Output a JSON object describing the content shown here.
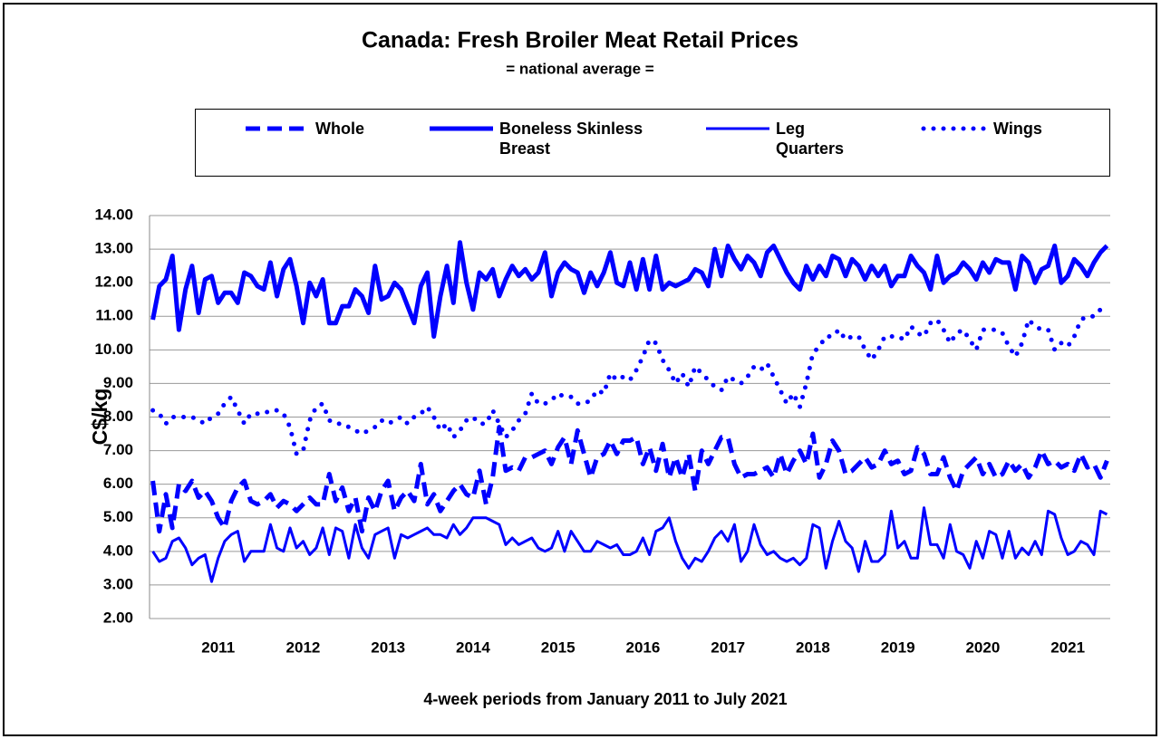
{
  "chart_data": {
    "type": "line",
    "title": "Canada: Fresh Broiler Meat Retail Prices",
    "subtitle": "= national average =",
    "y_label": "C$/kg",
    "x_label": "4-week periods from January 2011 to July 2021",
    "ylim": [
      2,
      14
    ],
    "yticks": [
      {
        "value": 2,
        "label": "2.00"
      },
      {
        "value": 3,
        "label": "3.00"
      },
      {
        "value": 4,
        "label": "4.00"
      },
      {
        "value": 5,
        "label": "5.00"
      },
      {
        "value": 6,
        "label": "6.00"
      },
      {
        "value": 7,
        "label": "7.00"
      },
      {
        "value": 8,
        "label": "8.00"
      },
      {
        "value": 9,
        "label": "9.00"
      },
      {
        "value": 10,
        "label": "10.00"
      },
      {
        "value": 11,
        "label": "11.00"
      },
      {
        "value": 12,
        "label": "12.00"
      },
      {
        "value": 13,
        "label": "13.00"
      },
      {
        "value": 14,
        "label": "14.00"
      }
    ],
    "grid": true,
    "legend": "top",
    "categories": [
      null,
      null,
      null,
      null,
      null,
      null,
      null,
      null,
      null,
      null,
      "2011",
      null,
      null,
      null,
      null,
      null,
      null,
      null,
      null,
      null,
      null,
      null,
      null,
      "2012",
      null,
      null,
      null,
      null,
      null,
      null,
      null,
      null,
      null,
      null,
      null,
      null,
      "2013",
      null,
      null,
      null,
      null,
      null,
      null,
      null,
      null,
      null,
      null,
      null,
      null,
      "2014",
      null,
      null,
      null,
      null,
      null,
      null,
      null,
      null,
      null,
      null,
      null,
      null,
      "2015",
      null,
      null,
      null,
      null,
      null,
      null,
      null,
      null,
      null,
      null,
      null,
      null,
      "2016",
      null,
      null,
      null,
      null,
      null,
      null,
      null,
      null,
      null,
      null,
      null,
      null,
      "2017",
      null,
      null,
      null,
      null,
      null,
      null,
      null,
      null,
      null,
      null,
      null,
      null,
      "2018",
      null,
      null,
      null,
      null,
      null,
      null,
      null,
      null,
      null,
      null,
      null,
      null,
      "2019",
      null,
      null,
      null,
      null,
      null,
      null,
      null,
      null,
      null,
      null,
      null,
      null,
      "2020",
      null,
      null,
      null,
      null,
      null,
      null,
      null,
      null,
      null,
      null,
      null,
      null,
      "2021",
      null,
      null,
      null,
      null,
      null,
      null
    ],
    "series": [
      {
        "name": "Whole",
        "color": "#0000ff",
        "style": "dashed",
        "values": [
          6.1,
          4.6,
          5.7,
          4.7,
          6.0,
          5.8,
          6.1,
          5.6,
          5.8,
          5.5,
          5.0,
          4.7,
          5.5,
          5.9,
          6.1,
          5.5,
          5.4,
          5.5,
          5.7,
          5.3,
          5.5,
          5.4,
          5.2,
          5.4,
          5.6,
          5.4,
          5.4,
          6.3,
          5.5,
          5.9,
          5.2,
          5.6,
          4.6,
          5.6,
          5.2,
          5.8,
          6.1,
          5.2,
          5.6,
          5.8,
          5.5,
          6.6,
          5.4,
          5.7,
          5.2,
          5.5,
          5.8,
          6.0,
          5.7,
          5.6,
          6.4,
          5.4,
          6.2,
          7.7,
          6.4,
          6.5,
          6.4,
          6.8,
          6.8,
          6.9,
          7.0,
          6.6,
          7.1,
          7.4,
          6.6,
          7.6,
          6.9,
          6.2,
          6.8,
          6.9,
          7.3,
          6.9,
          7.3,
          7.3,
          7.4,
          6.6,
          7.1,
          6.4,
          7.2,
          6.2,
          6.8,
          6.2,
          6.9,
          5.8,
          7.0,
          6.6,
          7.0,
          7.4,
          7.4,
          6.6,
          6.2,
          6.3,
          6.3,
          6.4,
          6.5,
          6.2,
          6.9,
          6.3,
          6.7,
          7.0,
          6.6,
          7.5,
          6.2,
          6.6,
          7.3,
          7.0,
          6.3,
          6.4,
          6.6,
          6.8,
          6.5,
          6.6,
          7.0,
          6.6,
          6.7,
          6.3,
          6.4,
          7.1,
          6.9,
          6.3,
          6.3,
          6.8,
          6.2,
          5.8,
          6.4,
          6.6,
          6.8,
          6.3,
          6.6,
          6.2,
          6.3,
          6.7,
          6.4,
          6.6,
          6.2,
          6.5,
          7.0,
          6.6,
          6.7,
          6.5,
          6.6,
          6.4,
          6.9,
          6.5,
          6.6,
          6.2,
          6.7
        ]
      },
      {
        "name": "Boneless Skinless Breast",
        "color": "#0000ff",
        "style": "thick",
        "values": [
          10.9,
          11.9,
          12.1,
          12.8,
          10.6,
          11.8,
          12.5,
          11.1,
          12.1,
          12.2,
          11.4,
          11.7,
          11.7,
          11.4,
          12.3,
          12.2,
          11.9,
          11.8,
          12.6,
          11.6,
          12.4,
          12.7,
          11.9,
          10.8,
          12.0,
          11.6,
          12.1,
          10.8,
          10.8,
          11.3,
          11.3,
          11.8,
          11.6,
          11.1,
          12.5,
          11.5,
          11.6,
          12.0,
          11.8,
          11.3,
          10.8,
          11.9,
          12.3,
          10.4,
          11.6,
          12.5,
          11.4,
          13.2,
          12.0,
          11.2,
          12.3,
          12.1,
          12.4,
          11.6,
          12.1,
          12.5,
          12.2,
          12.4,
          12.1,
          12.3,
          12.9,
          11.6,
          12.3,
          12.6,
          12.4,
          12.3,
          11.7,
          12.3,
          11.9,
          12.3,
          12.9,
          12.0,
          11.9,
          12.6,
          11.8,
          12.7,
          11.8,
          12.8,
          11.8,
          12.0,
          11.9,
          12.0,
          12.1,
          12.4,
          12.3,
          11.9,
          13.0,
          12.2,
          13.1,
          12.7,
          12.4,
          12.8,
          12.6,
          12.2,
          12.9,
          13.1,
          12.7,
          12.3,
          12.0,
          11.8,
          12.5,
          12.1,
          12.5,
          12.2,
          12.8,
          12.7,
          12.2,
          12.7,
          12.5,
          12.1,
          12.5,
          12.2,
          12.5,
          11.9,
          12.2,
          12.2,
          12.8,
          12.5,
          12.3,
          11.8,
          12.8,
          12.0,
          12.2,
          12.3,
          12.6,
          12.4,
          12.1,
          12.6,
          12.3,
          12.7,
          12.6,
          12.6,
          11.8,
          12.8,
          12.6,
          12.0,
          12.4,
          12.5,
          13.1,
          12.0,
          12.2,
          12.7,
          12.5,
          12.2,
          12.6,
          12.9,
          13.1
        ]
      },
      {
        "name": "Leg Quarters",
        "color": "#0000ff",
        "style": "solid",
        "values": [
          4.0,
          3.7,
          3.8,
          4.3,
          4.4,
          4.1,
          3.6,
          3.8,
          3.9,
          3.1,
          3.8,
          4.3,
          4.5,
          4.6,
          3.7,
          4.0,
          4.0,
          4.0,
          4.8,
          4.1,
          4.0,
          4.7,
          4.1,
          4.3,
          3.9,
          4.1,
          4.7,
          3.9,
          4.7,
          4.6,
          3.8,
          4.8,
          4.1,
          3.8,
          4.5,
          4.6,
          4.7,
          3.8,
          4.5,
          4.4,
          4.5,
          4.6,
          4.7,
          4.5,
          4.5,
          4.4,
          4.8,
          4.5,
          4.7,
          5.0,
          5.0,
          5.0,
          4.9,
          4.8,
          4.2,
          4.4,
          4.2,
          4.3,
          4.4,
          4.1,
          4.0,
          4.1,
          4.6,
          4.0,
          4.6,
          4.3,
          4.0,
          4.0,
          4.3,
          4.2,
          4.1,
          4.2,
          3.9,
          3.9,
          4.0,
          4.4,
          3.9,
          4.6,
          4.7,
          5.0,
          4.3,
          3.8,
          3.5,
          3.8,
          3.7,
          4.0,
          4.4,
          4.6,
          4.3,
          4.8,
          3.7,
          4.0,
          4.8,
          4.2,
          3.9,
          4.0,
          3.8,
          3.7,
          3.8,
          3.6,
          3.8,
          4.8,
          4.7,
          3.5,
          4.3,
          4.9,
          4.3,
          4.1,
          3.4,
          4.3,
          3.7,
          3.7,
          3.9,
          5.2,
          4.1,
          4.3,
          3.8,
          3.8,
          5.3,
          4.2,
          4.2,
          3.8,
          4.8,
          4.0,
          3.9,
          3.5,
          4.3,
          3.8,
          4.6,
          4.5,
          3.8,
          4.6,
          3.8,
          4.1,
          3.9,
          4.3,
          3.9,
          5.2,
          5.1,
          4.4,
          3.9,
          4.0,
          4.3,
          4.2,
          3.9,
          5.2,
          5.1
        ]
      },
      {
        "name": "Wings",
        "color": "#0000ff",
        "style": "dotted",
        "values": [
          8.2,
          8.1,
          7.8,
          8.0,
          8.0,
          8.0,
          8.0,
          7.9,
          7.8,
          8.0,
          8.1,
          8.4,
          8.6,
          8.2,
          7.8,
          8.1,
          8.1,
          8.1,
          8.2,
          8.2,
          8.1,
          7.7,
          6.9,
          7.0,
          7.9,
          8.3,
          8.4,
          7.9,
          7.8,
          7.8,
          7.7,
          7.6,
          7.5,
          7.6,
          7.7,
          7.9,
          7.8,
          7.9,
          8.0,
          7.8,
          8.0,
          8.1,
          8.3,
          8.0,
          7.6,
          7.8,
          7.4,
          7.6,
          7.9,
          8.0,
          7.8,
          7.8,
          8.2,
          7.8,
          7.4,
          7.6,
          7.9,
          8.1,
          8.7,
          8.4,
          8.4,
          8.5,
          8.7,
          8.6,
          8.6,
          8.4,
          8.4,
          8.5,
          8.8,
          8.7,
          9.3,
          9.1,
          9.2,
          9.1,
          9.4,
          9.8,
          10.3,
          10.2,
          9.7,
          9.4,
          9.0,
          9.3,
          8.9,
          9.5,
          9.3,
          9.1,
          8.9,
          8.8,
          9.2,
          9.1,
          9.0,
          9.2,
          9.5,
          9.4,
          9.6,
          9.2,
          8.8,
          8.4,
          8.7,
          8.3,
          9.0,
          9.9,
          10.1,
          10.4,
          10.4,
          10.6,
          10.3,
          10.4,
          10.4,
          10.0,
          9.7,
          10.0,
          10.4,
          10.4,
          10.4,
          10.3,
          10.7,
          10.5,
          10.4,
          10.8,
          10.9,
          10.6,
          10.2,
          10.5,
          10.6,
          10.3,
          10.0,
          10.6,
          10.6,
          10.6,
          10.5,
          10.1,
          9.8,
          10.2,
          10.9,
          10.7,
          10.6,
          10.6,
          10.0,
          10.2,
          10.1,
          10.4,
          10.9,
          11.0,
          11.0,
          11.2,
          11.1
        ]
      }
    ]
  }
}
